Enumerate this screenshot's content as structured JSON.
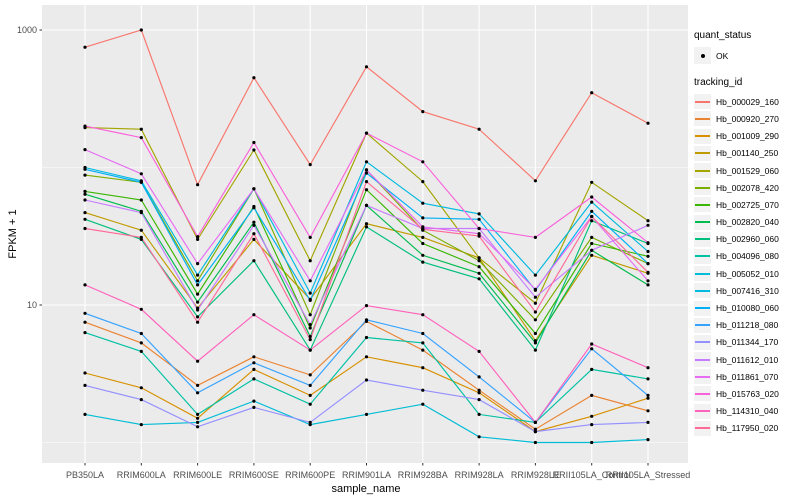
{
  "figure": {
    "background": "#FFFFFF",
    "panel_background": "#EBEBEB",
    "grid_color": "#FFFFFF",
    "tick_color": "#333333",
    "tick_label_color": "#4D4D4D",
    "point_color": "#000000"
  },
  "chart_data": {
    "type": "line",
    "title": "",
    "xlabel": "sample_name",
    "ylabel": "FPKM + 1",
    "y_scale": "log10",
    "ylim": [
      0.7,
      1500
    ],
    "grid": true,
    "legend_position": "right",
    "y_ticks": [
      {
        "label": "1000",
        "value": 1000
      },
      {
        "label": "10",
        "value": 10
      }
    ],
    "y_minor_values": [
      100,
      1
    ],
    "categories": [
      "PB350LA",
      "RRIM600LA",
      "RRIM600LE",
      "RRIM600SE",
      "RRIM600PE",
      "RRIM901LA",
      "RRIM928BA",
      "RRIM928LA",
      "RRIM928LE",
      "RRII105LA_Control",
      "RRII105LA_Stressed"
    ],
    "series": [
      {
        "name": "Hb_000029_160",
        "color": "#F8766D",
        "values": [
          750,
          1000,
          75,
          450,
          105,
          540,
          255,
          190,
          80,
          350,
          210
        ]
      },
      {
        "name": "Hb_000920_270",
        "color": "#EA8331",
        "values": [
          7.5,
          5.3,
          2.6,
          4.2,
          3.1,
          7.6,
          4.7,
          2.4,
          1.25,
          2.2,
          1.7
        ]
      },
      {
        "name": "Hb_001009_290",
        "color": "#D89000",
        "values": [
          3.2,
          2.5,
          1.5,
          3.4,
          2.2,
          4.2,
          3.5,
          2.3,
          1.2,
          1.55,
          2.1
        ]
      },
      {
        "name": "Hb_001140_250",
        "color": "#C09B00",
        "values": [
          47,
          35,
          9.5,
          30,
          11,
          39,
          31,
          22,
          5.5,
          23,
          17
        ]
      },
      {
        "name": "Hb_001529_060",
        "color": "#A3A500",
        "values": [
          195,
          190,
          30,
          134,
          21,
          178,
          79,
          22,
          10.3,
          78,
          41
        ]
      },
      {
        "name": "Hb_002078_420",
        "color": "#7CAE00",
        "values": [
          88,
          78,
          15,
          70,
          8.5,
          96,
          35,
          21,
          7.8,
          31,
          20
        ]
      },
      {
        "name": "Hb_002725_070",
        "color": "#39B600",
        "values": [
          67,
          58,
          12,
          52,
          6.8,
          69,
          28,
          19,
          6.2,
          28,
          22.6
        ]
      },
      {
        "name": "Hb_002820_040",
        "color": "#00BB4E",
        "values": [
          64,
          48,
          10.5,
          40,
          5.9,
          53,
          23,
          17,
          5.3,
          25,
          14
        ]
      },
      {
        "name": "Hb_002960_060",
        "color": "#00BF7D",
        "values": [
          42,
          30,
          8.2,
          21,
          4.7,
          37,
          20.5,
          15.5,
          4.7,
          41,
          28
        ]
      },
      {
        "name": "Hb_004096_080",
        "color": "#00C1A3",
        "values": [
          6.3,
          4.6,
          1.6,
          2.9,
          1.9,
          5.8,
          5.3,
          1.6,
          1.4,
          3.4,
          2.9
        ]
      },
      {
        "name": "Hb_005052_010",
        "color": "#00BCD6",
        "values": [
          1.6,
          1.35,
          1.4,
          2.0,
          1.35,
          1.6,
          1.9,
          1.1,
          1.0,
          1.0,
          1.05
        ]
      },
      {
        "name": "Hb_007416_310",
        "color": "#00BAE0",
        "values": [
          100,
          80,
          16.5,
          70,
          12.2,
          110,
          55,
          46,
          16.5,
          56,
          24.5
        ]
      },
      {
        "name": "Hb_010080_060",
        "color": "#00B0F6",
        "values": [
          97,
          78,
          14,
          51,
          10.8,
          91,
          43,
          42,
          12.8,
          48,
          20
        ]
      },
      {
        "name": "Hb_011218_080",
        "color": "#35A2FF",
        "values": [
          8.7,
          6.2,
          2.3,
          3.8,
          2.6,
          7.8,
          6.2,
          3.0,
          1.4,
          4.8,
          2.2
        ]
      },
      {
        "name": "Hb_011344_170",
        "color": "#9590FF",
        "values": [
          2.6,
          2.05,
          1.3,
          1.8,
          1.4,
          2.85,
          2.4,
          2.05,
          1.2,
          1.35,
          1.4
        ]
      },
      {
        "name": "Hb_011612_010",
        "color": "#C77CFF",
        "values": [
          58,
          47,
          9.2,
          38,
          7.2,
          53,
          36,
          36,
          11.4,
          25,
          38
        ]
      },
      {
        "name": "Hb_011861_070",
        "color": "#E76BF3",
        "values": [
          135,
          90,
          20,
          70,
          15,
          96,
          37,
          33,
          13,
          44,
          15
        ]
      },
      {
        "name": "Hb_015763_020",
        "color": "#FA62DB",
        "values": [
          200,
          165,
          31.4,
          152,
          31,
          178,
          110,
          36,
          31,
          61,
          28.4
        ]
      },
      {
        "name": "Hb_114310_040",
        "color": "#FF62BC",
        "values": [
          14,
          9.3,
          3.9,
          8.5,
          4.7,
          9.9,
          8.5,
          4.6,
          1.4,
          5.2,
          3.5
        ]
      },
      {
        "name": "Hb_117950_020",
        "color": "#FF6A98",
        "values": [
          36,
          31,
          7.5,
          33,
          5.6,
          79,
          35.5,
          31.7,
          8.9,
          44,
          17.3
        ]
      }
    ],
    "legend": {
      "quant_status_title": "quant_status",
      "ok_label": "OK",
      "tracking_id_title": "tracking_id"
    }
  }
}
